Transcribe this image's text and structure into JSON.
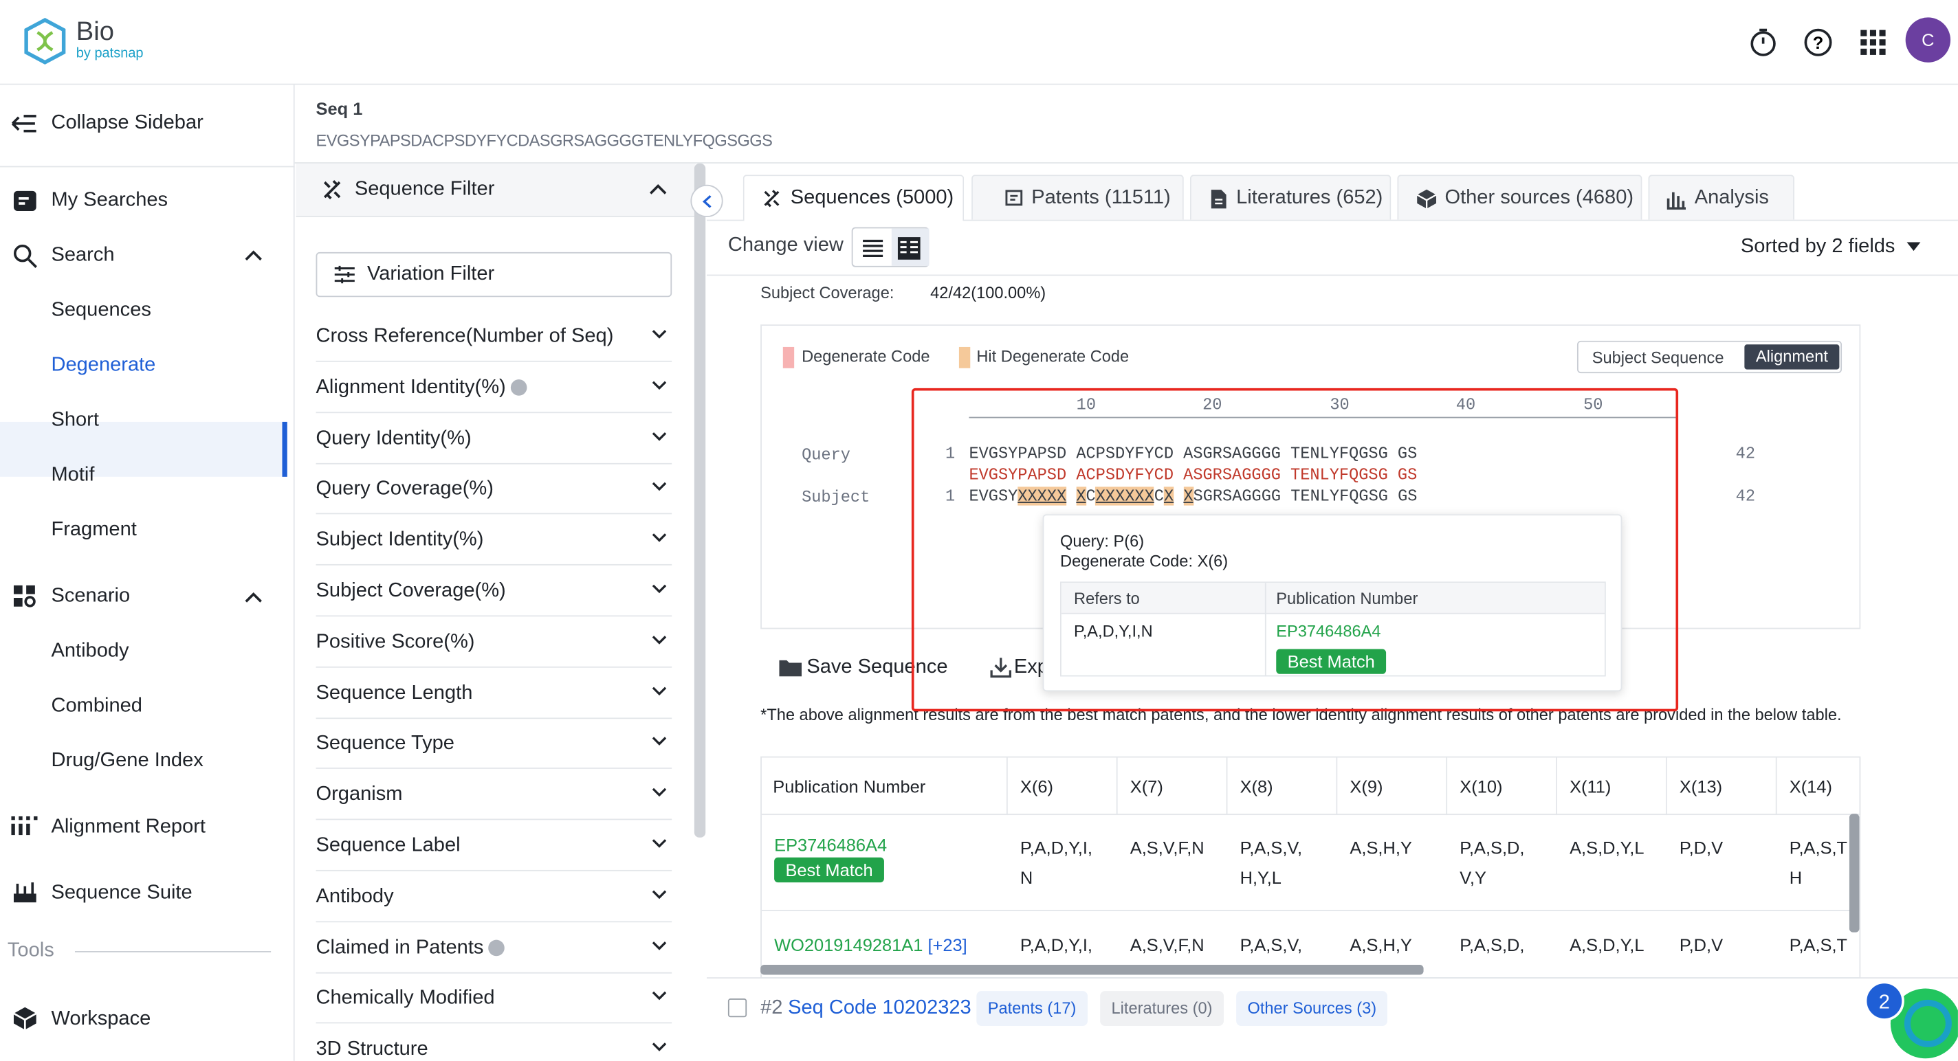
{
  "header": {
    "logo_title": "Bio",
    "logo_sub": "by patsnap",
    "avatar": "C"
  },
  "sidebar": {
    "collapse": "Collapse Sidebar",
    "my_searches": "My Searches",
    "search": "Search",
    "search_items": [
      "Sequences",
      "Degenerate",
      "Short",
      "Motif",
      "Fragment"
    ],
    "scenario": "Scenario",
    "scenario_items": [
      "Antibody",
      "Combined",
      "Drug/Gene Index"
    ],
    "alignment_report": "Alignment Report",
    "sequence_suite": "Sequence Suite",
    "tools": "Tools",
    "workspace": "Workspace"
  },
  "seq": {
    "label": "Seq 1",
    "value": "EVGSYPAPSDACPSDYFYCDASGRSAGGGGTENLYFQGSGGS"
  },
  "filter": {
    "title": "Sequence Filter",
    "variation": "Variation Filter",
    "items": [
      "Cross Reference(Number of Seq)",
      "Alignment Identity(%)",
      "Query Identity(%)",
      "Query Coverage(%)",
      "Subject Identity(%)",
      "Subject Coverage(%)",
      "Positive Score(%)",
      "Sequence Length",
      "Sequence Type",
      "Organism",
      "Sequence Label",
      "Antibody",
      "Claimed in Patents",
      "Chemically Modified",
      "3D Structure"
    ]
  },
  "tabs": [
    "Sequences (5000)",
    "Patents (11511)",
    "Literatures (652)",
    "Other sources (4680)",
    "Analysis"
  ],
  "toolbar": {
    "change_view": "Change view",
    "sorted": "Sorted by 2 fields"
  },
  "coverage": {
    "label": "Subject Coverage:",
    "value": "42/42(100.00%)"
  },
  "alignment": {
    "legend1": "Degenerate Code",
    "legend2": "Hit Degenerate Code",
    "toggle_a": "Subject Sequence",
    "toggle_b": "Alignment",
    "ruler": [
      "10",
      "20",
      "30",
      "40",
      "50"
    ],
    "query_label": "Query",
    "subject_label": "Subject",
    "query_start": "1",
    "query_seq": "EVGSYPAPSD ACPSDYFYCD ASGRSAGGGG TENLYFQGSG GS",
    "match_seq": "EVGSYPAPSD ACPSDYFYCD ASGRSAGGGG TENLYFQGSG GS",
    "subject_start": "1",
    "subject_parts": [
      "EVGSY",
      "XXXXX",
      " ",
      "X",
      "C",
      "XXXXXX",
      "C",
      "X",
      " ",
      "X",
      "SGRSAGGGG TENLYFQGSG GS"
    ],
    "query_end": "42",
    "subject_end": "42"
  },
  "tooltip": {
    "query": "Query: P(6)",
    "degen": "Degenerate Code: X(6)",
    "col1": "Refers to",
    "col2": "Publication Number",
    "refers": "P,A,D,Y,I,N",
    "pub": "EP3746486A4",
    "badge": "Best Match"
  },
  "actions": {
    "save": "Save Sequence",
    "export": "Exp"
  },
  "note": "*The above alignment results are from the best match patents, and the lower identity alignment results of other patents are provided in the below table.",
  "table": {
    "headers": [
      "Publication Number",
      "X(6)",
      "X(7)",
      "X(8)",
      "X(9)",
      "X(10)",
      "X(11)",
      "X(13)",
      "X(14)"
    ],
    "row1": {
      "pub": "EP3746486A4",
      "badge": "Best Match",
      "cells": [
        "P,A,D,Y,I,\nN",
        "A,S,V,F,N",
        "P,A,S,V,\nH,Y,L",
        "A,S,H,Y",
        "P,A,S,D,\nV,Y",
        "A,S,D,Y,L",
        "P,D,V",
        "P,A,S,T\nH"
      ]
    },
    "row2": {
      "pub": "WO2019149281A1",
      "more": "[+23]",
      "cells": [
        "P,A,D,Y,I,",
        "A,S,V,F,N",
        "P,A,S,V,",
        "A,S,H,Y",
        "P,A,S,D,",
        "A,S,D,Y,L",
        "P,D,V",
        "P,A,S,T"
      ]
    }
  },
  "footer_row": {
    "num": "#2",
    "code": "Seq Code 10202323",
    "patents": "Patents (17)",
    "lits": "Literatures (0)",
    "other": "Other Sources (3)",
    "chat_count": "2"
  },
  "colors": {
    "accent": "#1f5fd6",
    "green": "#22a34a",
    "red": "#e8271f",
    "purple": "#6b3fa0"
  }
}
